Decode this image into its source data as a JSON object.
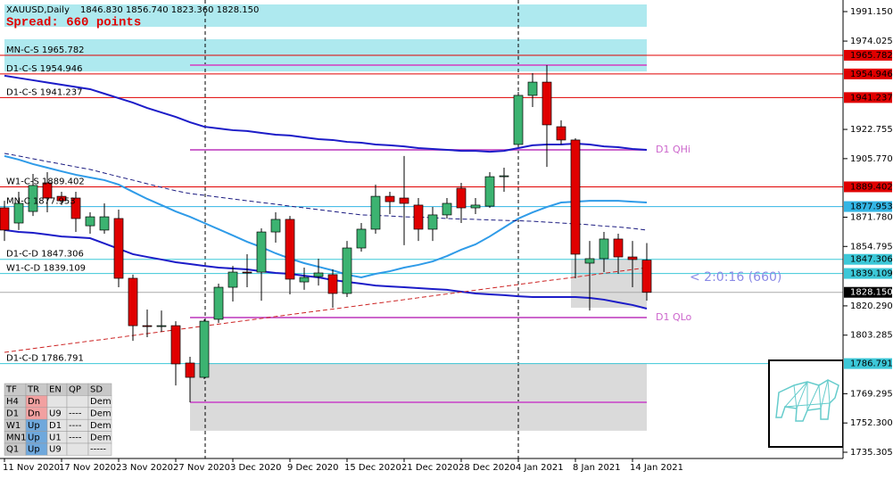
{
  "chart_data": {
    "type": "candlestick",
    "title": "XAUUSD,Daily",
    "ohlc_label": "1846.830 1856.740 1823.360 1828.150",
    "subtitle": "Spread: 660 points",
    "countdown": "< 2:0:16 (660)",
    "categories": [
      "11 Nov 2020",
      null,
      null,
      null,
      "17 Nov 2020",
      null,
      null,
      null,
      "23 Nov 2020",
      null,
      null,
      null,
      "27 Nov 2020",
      null,
      null,
      null,
      "3 Dec 2020",
      null,
      null,
      null,
      "9 Dec 2020",
      null,
      null,
      null,
      "15 Dec 2020",
      null,
      null,
      null,
      "21 Dec 2020",
      null,
      null,
      null,
      "28 Dec 2020",
      null,
      null,
      null,
      "4 Jan 2021",
      null,
      null,
      null,
      "8 Jan 2021",
      null,
      null,
      null,
      "14 Jan 2021",
      null
    ],
    "open": [
      1877.2,
      1868.4,
      1875.1,
      1891.7,
      1883.9,
      1882.9,
      1866.8,
      1864.3,
      1871.0,
      1836.3,
      1808.8,
      1808.3,
      1808.8,
      1787.1,
      1778.8,
      1812.5,
      1831.1,
      1839.9,
      1839.9,
      1863.2,
      1870.5,
      1834.2,
      1837.3,
      1838.4,
      1827.5,
      1853.9,
      1864.8,
      1883.9,
      1882.9,
      1878.8,
      1864.8,
      1873.1,
      1888.6,
      1877.2,
      1878.2,
      1895.3,
      1914.0,
      1942.5,
      1950.2,
      1924.3,
      1916.6,
      1845.1,
      1847.7,
      1859.1,
      1848.7,
      1846.83
    ],
    "high": [
      1881.3,
      1886.5,
      1896.9,
      1897.9,
      1886.5,
      1886.5,
      1874.6,
      1879.8,
      1876.2,
      1838.4,
      1818.2,
      1817.6,
      1811.4,
      1790.7,
      1812.5,
      1833.2,
      1843.5,
      1850.3,
      1865.3,
      1874.6,
      1872.5,
      1842.5,
      1847.7,
      1841.5,
      1858.0,
      1868.4,
      1890.7,
      1886.5,
      1907.3,
      1882.9,
      1877.7,
      1882.9,
      1891.7,
      1882.9,
      1897.9,
      1900.5,
      1944.5,
      1955.4,
      1960.1,
      1928.0,
      1917.6,
      1858.0,
      1863.2,
      1862.2,
      1858.0,
      1856.74
    ],
    "low": [
      1858.0,
      1864.3,
      1872.5,
      1874.6,
      1878.8,
      1863.2,
      1862.2,
      1862.2,
      1831.1,
      1800.0,
      1802.1,
      1805.2,
      1774.1,
      1764.3,
      1777.8,
      1810.4,
      1822.8,
      1831.1,
      1823.3,
      1857.0,
      1827.0,
      1829.6,
      1832.1,
      1819.2,
      1825.4,
      1851.8,
      1862.2,
      1873.6,
      1855.5,
      1858.0,
      1858.0,
      1871.0,
      1868.4,
      1873.6,
      1877.2,
      1886.5,
      1912.4,
      1935.7,
      1901.0,
      1914.0,
      1836.3,
      1817.6,
      1839.9,
      1838.9,
      1831.1,
      1823.36
    ],
    "close": [
      1864.3,
      1879.8,
      1890.2,
      1882.9,
      1881.3,
      1871.0,
      1872.0,
      1872.0,
      1836.3,
      1808.8,
      1808.3,
      1808.8,
      1786.6,
      1778.8,
      1811.4,
      1831.1,
      1839.9,
      1839.4,
      1863.2,
      1870.5,
      1835.8,
      1836.8,
      1839.4,
      1827.5,
      1853.9,
      1864.8,
      1883.9,
      1880.8,
      1879.8,
      1864.8,
      1873.1,
      1879.8,
      1877.2,
      1878.8,
      1895.3,
      1895.8,
      1942.5,
      1950.2,
      1925.4,
      1916.6,
      1850.3,
      1847.7,
      1859.1,
      1848.7,
      1847.2,
      1828.15
    ],
    "up_color": "#3cb371",
    "down_color": "#e00000",
    "current_price": {
      "value": 1828.15,
      "label": "1828.150"
    },
    "series": [
      {
        "color": "#1c1cc8",
        "style": "solid",
        "values": [
          1953.9,
          1952.6,
          1951.3,
          1950.0,
          1948.7,
          1947.4,
          1946.1,
          1943.5,
          1940.9,
          1938.3,
          1935.2,
          1932.6,
          1930.0,
          1926.9,
          1924.3,
          1923.3,
          1922.3,
          1921.8,
          1920.7,
          1919.7,
          1919.2,
          1918.1,
          1917.1,
          1916.6,
          1915.5,
          1915.0,
          1914.0,
          1913.5,
          1912.9,
          1911.9,
          1911.4,
          1910.9,
          1910.3,
          1910.3,
          1909.8,
          1910.3,
          1911.9,
          1913.5,
          1914.0,
          1914.0,
          1914.5,
          1914.0,
          1912.9,
          1912.4,
          1911.4,
          1910.9
        ]
      },
      {
        "color": "#1c1cc8",
        "style": "solid",
        "values": [
          1864.3,
          1863.2,
          1862.7,
          1861.7,
          1860.6,
          1860.1,
          1859.6,
          1856.5,
          1853.4,
          1850.3,
          1848.7,
          1847.2,
          1845.6,
          1844.6,
          1843.5,
          1842.5,
          1842.0,
          1841.5,
          1840.4,
          1839.4,
          1838.9,
          1837.8,
          1836.8,
          1835.3,
          1834.2,
          1833.2,
          1832.1,
          1831.6,
          1831.1,
          1830.6,
          1830.1,
          1829.6,
          1828.5,
          1827.5,
          1827.0,
          1826.5,
          1825.9,
          1825.4,
          1825.4,
          1825.4,
          1825.4,
          1824.9,
          1823.9,
          1822.3,
          1820.8,
          1818.7
        ]
      },
      {
        "color": "#2f9be8",
        "style": "solid",
        "values": [
          1907.3,
          1905.2,
          1902.6,
          1900.5,
          1898.4,
          1896.4,
          1894.8,
          1893.3,
          1890.7,
          1886.5,
          1882.4,
          1878.8,
          1875.1,
          1872.0,
          1868.4,
          1864.8,
          1861.2,
          1857.5,
          1854.4,
          1850.8,
          1847.7,
          1845.1,
          1843.0,
          1840.9,
          1838.4,
          1836.8,
          1838.9,
          1840.4,
          1842.5,
          1844.1,
          1846.1,
          1849.2,
          1852.9,
          1856.0,
          1860.6,
          1865.8,
          1871.0,
          1874.6,
          1877.7,
          1880.3,
          1880.8,
          1881.3,
          1881.3,
          1881.3,
          1880.8,
          1880.3
        ]
      },
      {
        "color": "#1a1a80",
        "style": "dashed",
        "values": [
          1908.8,
          1907.3,
          1905.7,
          1904.1,
          1902.6,
          1901.0,
          1899.5,
          1897.4,
          1895.3,
          1893.3,
          1891.2,
          1889.1,
          1887.1,
          1885.5,
          1884.5,
          1883.4,
          1882.4,
          1881.3,
          1880.3,
          1879.3,
          1878.2,
          1877.2,
          1876.2,
          1875.1,
          1874.1,
          1873.1,
          1872.8,
          1872.5,
          1872.0,
          1871.8,
          1871.5,
          1871.0,
          1870.7,
          1870.5,
          1870.2,
          1869.9,
          1869.7,
          1869.4,
          1868.9,
          1868.4,
          1867.9,
          1867.4,
          1866.6,
          1866.1,
          1865.3,
          1864.3
        ]
      },
      {
        "color": "#cc2222",
        "style": "dashed",
        "values": [
          1793.3,
          1794.4,
          1795.5,
          1796.6,
          1797.7,
          1798.8,
          1799.9,
          1800.9,
          1802.0,
          1803.1,
          1804.2,
          1805.3,
          1806.4,
          1807.5,
          1808.6,
          1809.7,
          1810.8,
          1811.9,
          1813.0,
          1814.1,
          1815.2,
          1816.3,
          1817.4,
          1818.4,
          1819.5,
          1820.6,
          1821.7,
          1822.8,
          1823.9,
          1825.0,
          1826.1,
          1827.2,
          1828.3,
          1829.4,
          1830.5,
          1831.6,
          1832.7,
          1833.8,
          1834.9,
          1835.9,
          1837.0,
          1838.1,
          1839.2,
          1840.3,
          1841.4,
          1842.5
        ]
      }
    ],
    "levels": [
      {
        "label": "MN-C-S 1965.782",
        "value": 1965.782,
        "color": "#e00000"
      },
      {
        "label": "D1-C-S 1954.946",
        "value": 1954.946,
        "color": "#e00000"
      },
      {
        "label": "D1-C-S 1941.237",
        "value": 1941.237,
        "color": "#e00000"
      },
      {
        "label": "W1-C-S 1889.402",
        "value": 1889.402,
        "color": "#e00000"
      },
      {
        "label": "MN-C 1877.953",
        "value": 1877.953,
        "color": "#33b5e5"
      },
      {
        "label": "D1-C-D 1847.306",
        "value": 1847.306,
        "color": "#3cc8d8"
      },
      {
        "label": "W1-C-D 1839.109",
        "value": 1839.109,
        "color": "#3cc8d8"
      },
      {
        "label": "D1-C-D 1786.791",
        "value": 1786.791,
        "color": "#3cc8d8"
      }
    ],
    "quarter_levels": [
      {
        "value": 1960.1
      },
      {
        "label": "D1 QHi",
        "value": 1910.9
      },
      {
        "label": "D1 QLo",
        "value": 1813.5
      },
      {
        "value": 1764.3
      }
    ],
    "quarter_color": "#cc66cc",
    "zones": [
      {
        "low": 1982.3,
        "high": 1995.3,
        "color": "#aee9ef"
      },
      {
        "low": 1956.4,
        "high": 1975.1,
        "color": "#aee9ef"
      },
      {
        "low": 1819.2,
        "high": 1847.7,
        "color": "#dadada"
      },
      {
        "low": 1747.8,
        "high": 1787.1,
        "color": "#dadada"
      }
    ],
    "ylim": [
      1731.68,
      1997.88
    ],
    "yticks": [
      {
        "value": 1991.15,
        "label": "1991.150"
      },
      {
        "value": 1974.025,
        "label": "1974.025"
      },
      {
        "value": 1922.755,
        "label": "1922.755"
      },
      {
        "value": 1905.77,
        "label": "1905.770"
      },
      {
        "value": 1871.78,
        "label": "1871.780"
      },
      {
        "value": 1854.795,
        "label": "1854.795"
      },
      {
        "value": 1820.29,
        "label": "1820.290"
      },
      {
        "value": 1803.285,
        "label": "1803.285"
      },
      {
        "value": 1769.295,
        "label": "1769.295"
      },
      {
        "value": 1752.3,
        "label": "1752.300"
      },
      {
        "value": 1735.305,
        "label": "1735.305"
      }
    ]
  },
  "indicator_table": {
    "header": [
      "TF",
      "TR",
      "EN",
      "QP",
      "SD"
    ],
    "rows": [
      [
        "H4",
        "Dn",
        null,
        null,
        "Dem"
      ],
      [
        "D1",
        "Dn",
        "U9",
        "----",
        "Dem"
      ],
      [
        "W1",
        "Up",
        "D1",
        "----",
        "Dem"
      ],
      [
        "MN1",
        "Up",
        "U1",
        "----",
        "Dem"
      ],
      [
        "Q1",
        "Up",
        "U9",
        null,
        "-----"
      ]
    ]
  }
}
